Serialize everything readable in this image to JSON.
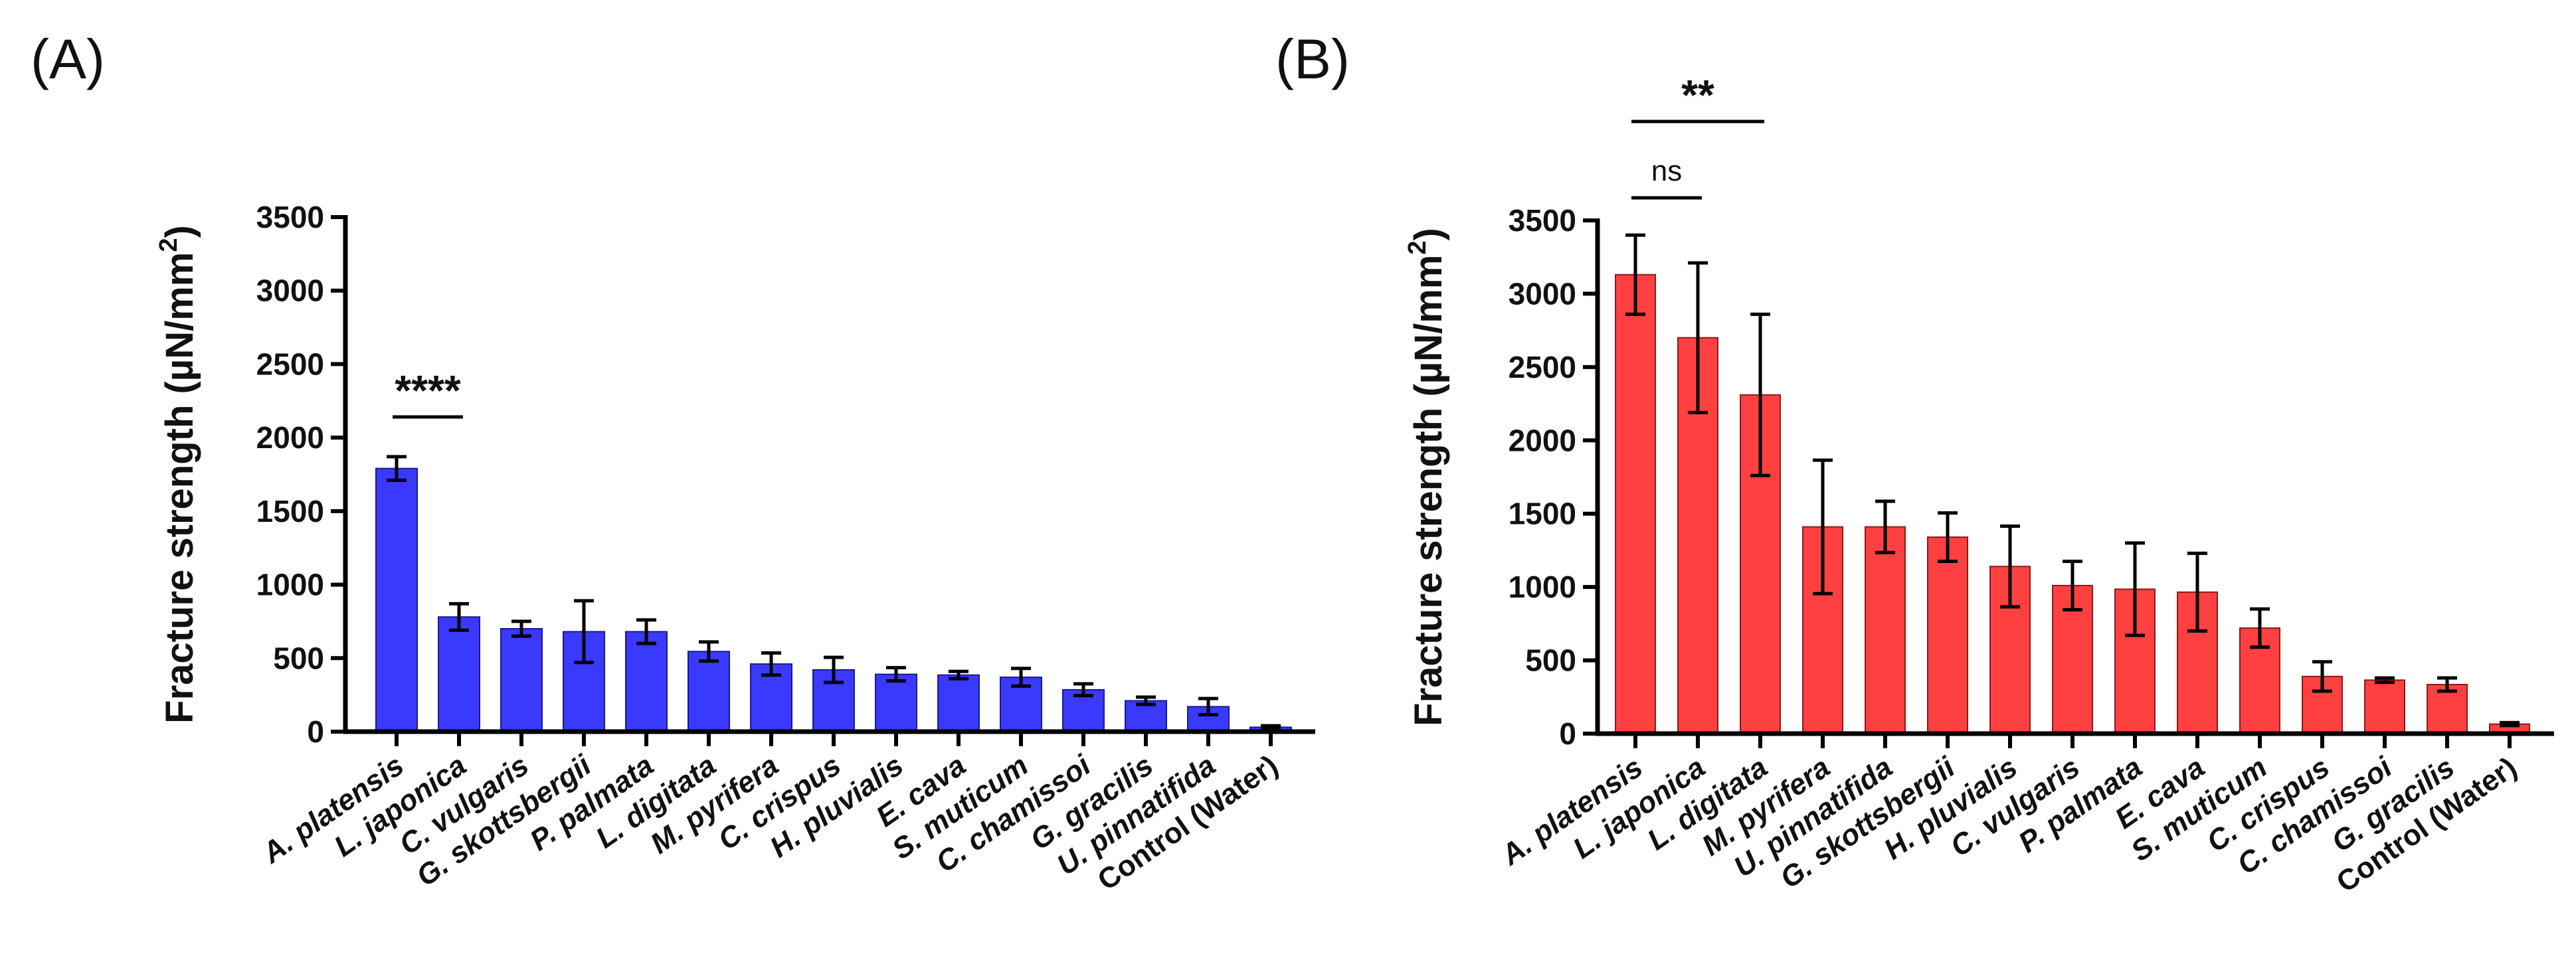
{
  "chart_data": [
    {
      "panel": "(A)",
      "type": "bar",
      "ylabel": "Fracture strength (µN/mm²)",
      "ylabel_main": "Fracture strength (µN/mm",
      "ylabel_sup": "2",
      "ylabel_end": ")",
      "ylim": [
        0,
        3500
      ],
      "yticks": [
        0,
        500,
        1000,
        1500,
        2000,
        2500,
        3000,
        3500
      ],
      "bar_color": "#3a3aff",
      "bar_stroke": "#1a1a8c",
      "categories": [
        "A. platensis",
        "L. japonica",
        "C. vulgaris",
        "G. skottsbergii",
        "P. palmata",
        "L. digitata",
        "M. pyrifera",
        "C. crispus",
        "H. pluvialis",
        "E. cava",
        "S. muticum",
        "C. chamissoi",
        "G. gracilis",
        "U. pinnatifida",
        "Control (Water)"
      ],
      "values": [
        1790,
        780,
        700,
        680,
        680,
        545,
        460,
        420,
        390,
        385,
        370,
        285,
        210,
        170,
        30
      ],
      "errors": [
        80,
        90,
        50,
        210,
        80,
        65,
        75,
        85,
        45,
        25,
        60,
        40,
        25,
        55,
        10
      ],
      "significance": [
        {
          "from": 0,
          "to": 1,
          "label": "****"
        }
      ]
    },
    {
      "panel": "(B)",
      "type": "bar",
      "ylabel": "Fracture strength (µN/mm²)",
      "ylabel_main": "Fracture strength (µN/mm",
      "ylabel_sup": "2",
      "ylabel_end": ")",
      "ylim": [
        0,
        3500
      ],
      "yticks": [
        0,
        500,
        1000,
        1500,
        2000,
        2500,
        3000,
        3500
      ],
      "bar_color": "#ff4040",
      "bar_stroke": "#8c1a1a",
      "categories": [
        "A. platensis",
        "L. japonica",
        "L. digitata",
        "M. pyrifera",
        "U. pinnatifida",
        "G. skottsbergii",
        "H. pluvialis",
        "C. vulgaris",
        "P. palmata",
        "E. cava",
        "S. muticum",
        "C. crispus",
        "C. chamissoi",
        "G. gracilis",
        "Control (Water)"
      ],
      "values": [
        3130,
        2700,
        2310,
        1410,
        1410,
        1340,
        1140,
        1010,
        985,
        965,
        720,
        390,
        365,
        335,
        65
      ],
      "errors": [
        270,
        510,
        550,
        455,
        175,
        165,
        275,
        165,
        315,
        265,
        130,
        100,
        15,
        45,
        10
      ],
      "significance": [
        {
          "from": 0,
          "to": 1,
          "label": "ns"
        },
        {
          "from": 0,
          "to": 2,
          "label": "**"
        }
      ]
    }
  ]
}
